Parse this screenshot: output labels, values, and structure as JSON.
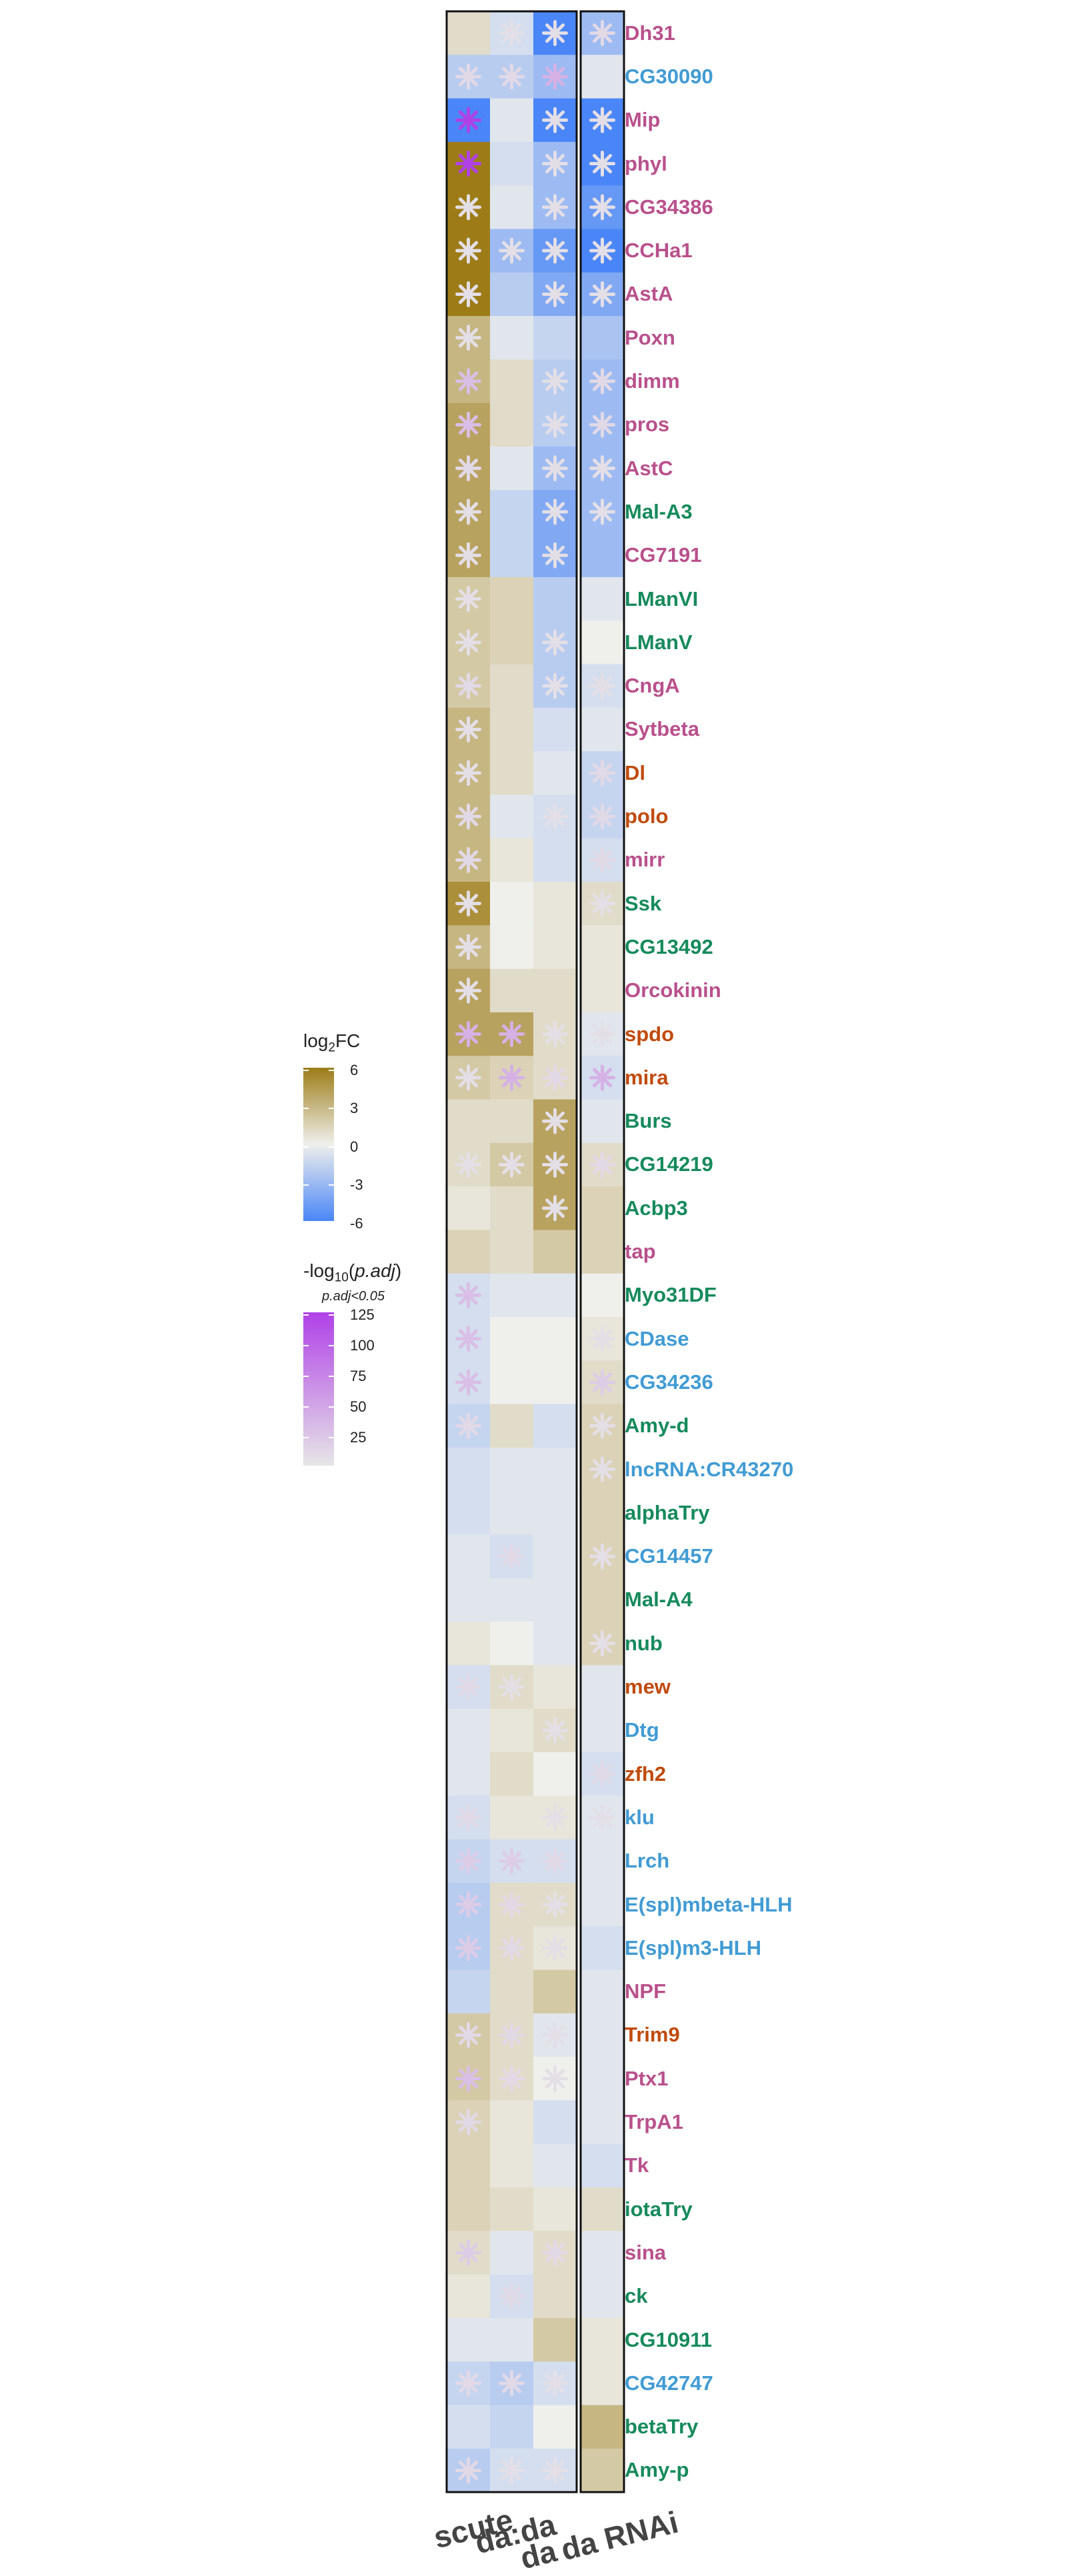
{
  "chart_data": {
    "type": "heatmap",
    "columns": [
      "scute",
      "da:da",
      "da",
      "da RNAi"
    ],
    "rows": [
      {
        "gene": "Dh31",
        "group": "pink",
        "log2fc": [
          1.0,
          -1.0,
          -6.0,
          -3.0
        ],
        "sig": [
          0,
          1,
          1,
          1
        ],
        "padj": [
          0,
          5,
          5,
          10
        ]
      },
      {
        "gene": "CG30090",
        "group": "blue",
        "log2fc": [
          -2.0,
          -2.0,
          -3.0,
          -0.5
        ],
        "sig": [
          1,
          1,
          1,
          0
        ],
        "padj": [
          10,
          10,
          40,
          0
        ]
      },
      {
        "gene": "Mip",
        "group": "pink",
        "log2fc": [
          -6.0,
          -0.5,
          -6.0,
          -6.0
        ],
        "sig": [
          1,
          0,
          1,
          1
        ],
        "padj": [
          125,
          0,
          5,
          5
        ]
      },
      {
        "gene": "phyl",
        "group": "pink",
        "log2fc": [
          6.0,
          -1.0,
          -3.0,
          -6.0
        ],
        "sig": [
          1,
          0,
          1,
          1
        ],
        "padj": [
          125,
          0,
          5,
          5
        ]
      },
      {
        "gene": "CG34386",
        "group": "pink",
        "log2fc": [
          6.0,
          -0.5,
          -3.0,
          -5.0
        ],
        "sig": [
          1,
          0,
          1,
          1
        ],
        "padj": [
          5,
          0,
          5,
          5
        ]
      },
      {
        "gene": "CCHa1",
        "group": "pink",
        "log2fc": [
          6.0,
          -3.0,
          -5.0,
          -6.0
        ],
        "sig": [
          1,
          1,
          1,
          1
        ],
        "padj": [
          5,
          5,
          5,
          5
        ]
      },
      {
        "gene": "AstA",
        "group": "pink",
        "log2fc": [
          6.0,
          -2.0,
          -4.0,
          -4.0
        ],
        "sig": [
          1,
          0,
          1,
          1
        ],
        "padj": [
          5,
          0,
          5,
          5
        ]
      },
      {
        "gene": "Poxn",
        "group": "pink",
        "log2fc": [
          3.0,
          -0.5,
          -1.5,
          -2.5
        ],
        "sig": [
          1,
          0,
          0,
          0
        ],
        "padj": [
          5,
          0,
          0,
          0
        ]
      },
      {
        "gene": "dimm",
        "group": "pink",
        "log2fc": [
          3.0,
          1.0,
          -2.0,
          -3.0
        ],
        "sig": [
          1,
          0,
          1,
          1
        ],
        "padj": [
          30,
          0,
          5,
          10
        ]
      },
      {
        "gene": "pros",
        "group": "pink",
        "log2fc": [
          4.0,
          1.0,
          -2.0,
          -3.0
        ],
        "sig": [
          1,
          0,
          1,
          1
        ],
        "padj": [
          30,
          0,
          5,
          10
        ]
      },
      {
        "gene": "AstC",
        "group": "pink",
        "log2fc": [
          4.0,
          -0.5,
          -3.0,
          -3.0
        ],
        "sig": [
          1,
          0,
          1,
          1
        ],
        "padj": [
          10,
          0,
          5,
          5
        ]
      },
      {
        "gene": "Mal-A3",
        "group": "green",
        "log2fc": [
          4.0,
          -1.5,
          -4.0,
          -3.0
        ],
        "sig": [
          1,
          0,
          1,
          1
        ],
        "padj": [
          5,
          0,
          5,
          5
        ]
      },
      {
        "gene": "CG7191",
        "group": "pink",
        "log2fc": [
          4.0,
          -1.5,
          -4.0,
          -3.0
        ],
        "sig": [
          1,
          0,
          1,
          0
        ],
        "padj": [
          5,
          0,
          5,
          0
        ]
      },
      {
        "gene": "LManVI",
        "group": "green",
        "log2fc": [
          2.0,
          1.5,
          -2.0,
          -0.5
        ],
        "sig": [
          1,
          0,
          0,
          0
        ],
        "padj": [
          5,
          0,
          0,
          0
        ]
      },
      {
        "gene": "LManV",
        "group": "green",
        "log2fc": [
          2.0,
          1.5,
          -2.0,
          0.0
        ],
        "sig": [
          1,
          0,
          1,
          0
        ],
        "padj": [
          5,
          0,
          5,
          0
        ]
      },
      {
        "gene": "CngA",
        "group": "pink",
        "log2fc": [
          2.0,
          1.0,
          -2.0,
          -1.0
        ],
        "sig": [
          1,
          0,
          1,
          1
        ],
        "padj": [
          10,
          0,
          5,
          5
        ]
      },
      {
        "gene": "Sytbeta",
        "group": "pink",
        "log2fc": [
          3.0,
          1.0,
          -1.0,
          -0.5
        ],
        "sig": [
          1,
          0,
          0,
          0
        ],
        "padj": [
          5,
          0,
          0,
          0
        ]
      },
      {
        "gene": "Dl",
        "group": "orange",
        "log2fc": [
          3.0,
          1.0,
          -0.5,
          -1.5
        ],
        "sig": [
          1,
          0,
          0,
          1
        ],
        "padj": [
          5,
          0,
          0,
          10
        ]
      },
      {
        "gene": "polo",
        "group": "orange",
        "log2fc": [
          3.0,
          -0.5,
          -1.0,
          -1.5
        ],
        "sig": [
          1,
          0,
          1,
          1
        ],
        "padj": [
          10,
          0,
          5,
          10
        ]
      },
      {
        "gene": "mirr",
        "group": "pink",
        "log2fc": [
          3.0,
          0.5,
          -1.0,
          -1.0
        ],
        "sig": [
          1,
          0,
          0,
          1
        ],
        "padj": [
          10,
          0,
          0,
          10
        ]
      },
      {
        "gene": "Ssk",
        "group": "green",
        "log2fc": [
          5.0,
          0.0,
          0.5,
          1.0
        ],
        "sig": [
          1,
          0,
          0,
          1
        ],
        "padj": [
          5,
          0,
          0,
          5
        ]
      },
      {
        "gene": "CG13492",
        "group": "green",
        "log2fc": [
          3.0,
          0.0,
          0.5,
          0.5
        ],
        "sig": [
          1,
          0,
          0,
          0
        ],
        "padj": [
          5,
          0,
          0,
          0
        ]
      },
      {
        "gene": "Orcokinin",
        "group": "pink",
        "log2fc": [
          4.0,
          1.0,
          1.0,
          0.5
        ],
        "sig": [
          1,
          0,
          0,
          0
        ],
        "padj": [
          5,
          0,
          0,
          0
        ]
      },
      {
        "gene": "spdo",
        "group": "orange",
        "log2fc": [
          4.0,
          4.0,
          1.0,
          -0.5
        ],
        "sig": [
          1,
          1,
          1,
          1
        ],
        "padj": [
          40,
          40,
          5,
          5
        ]
      },
      {
        "gene": "mira",
        "group": "orange",
        "log2fc": [
          2.0,
          1.5,
          1.0,
          -1.0
        ],
        "sig": [
          1,
          1,
          1,
          1
        ],
        "padj": [
          5,
          40,
          10,
          40
        ]
      },
      {
        "gene": "Burs",
        "group": "green",
        "log2fc": [
          1.0,
          1.0,
          4.0,
          -0.5
        ],
        "sig": [
          0,
          0,
          1,
          0
        ],
        "padj": [
          0,
          0,
          5,
          0
        ]
      },
      {
        "gene": "CG14219",
        "group": "green",
        "log2fc": [
          1.0,
          2.0,
          4.0,
          1.0
        ],
        "sig": [
          1,
          1,
          1,
          1
        ],
        "padj": [
          5,
          5,
          5,
          10
        ]
      },
      {
        "gene": "Acbp3",
        "group": "green",
        "log2fc": [
          0.5,
          1.0,
          4.0,
          1.5
        ],
        "sig": [
          0,
          0,
          1,
          0
        ],
        "padj": [
          0,
          0,
          5,
          0
        ]
      },
      {
        "gene": "tap",
        "group": "pink",
        "log2fc": [
          1.5,
          1.0,
          2.0,
          1.5
        ],
        "sig": [
          0,
          0,
          0,
          0
        ],
        "padj": [
          0,
          0,
          0,
          0
        ]
      },
      {
        "gene": "Myo31DF",
        "group": "green",
        "log2fc": [
          -1.0,
          -0.5,
          -0.5,
          0.0
        ],
        "sig": [
          1,
          0,
          0,
          0
        ],
        "padj": [
          30,
          0,
          0,
          0
        ]
      },
      {
        "gene": "CDase",
        "group": "blue",
        "log2fc": [
          -1.0,
          0.0,
          0.0,
          0.5
        ],
        "sig": [
          1,
          0,
          0,
          1
        ],
        "padj": [
          30,
          0,
          0,
          5
        ]
      },
      {
        "gene": "CG34236",
        "group": "blue",
        "log2fc": [
          -1.0,
          0.0,
          0.0,
          1.0
        ],
        "sig": [
          1,
          0,
          0,
          1
        ],
        "padj": [
          30,
          0,
          0,
          20
        ]
      },
      {
        "gene": "Amy-d",
        "group": "green",
        "log2fc": [
          -1.5,
          1.0,
          -1.0,
          1.5
        ],
        "sig": [
          1,
          0,
          0,
          1
        ],
        "padj": [
          10,
          0,
          0,
          5
        ]
      },
      {
        "gene": "lncRNA:CR43270",
        "group": "blue",
        "log2fc": [
          -1.0,
          -0.5,
          -0.5,
          1.5
        ],
        "sig": [
          0,
          0,
          0,
          1
        ],
        "padj": [
          0,
          0,
          0,
          5
        ]
      },
      {
        "gene": "alphaTry",
        "group": "green",
        "log2fc": [
          -1.0,
          -0.5,
          -0.5,
          1.5
        ],
        "sig": [
          0,
          0,
          0,
          0
        ],
        "padj": [
          0,
          0,
          0,
          0
        ]
      },
      {
        "gene": "CG14457",
        "group": "blue",
        "log2fc": [
          -0.5,
          -1.0,
          -0.5,
          1.5
        ],
        "sig": [
          0,
          1,
          0,
          1
        ],
        "padj": [
          0,
          10,
          0,
          5
        ]
      },
      {
        "gene": "Mal-A4",
        "group": "green",
        "log2fc": [
          -0.5,
          -0.5,
          -0.5,
          1.5
        ],
        "sig": [
          0,
          0,
          0,
          0
        ],
        "padj": [
          0,
          0,
          0,
          0
        ]
      },
      {
        "gene": "nub",
        "group": "green",
        "log2fc": [
          0.5,
          0.0,
          -0.5,
          1.5
        ],
        "sig": [
          0,
          0,
          0,
          1
        ],
        "padj": [
          0,
          0,
          0,
          5
        ]
      },
      {
        "gene": "mew",
        "group": "orange",
        "log2fc": [
          -1.0,
          1.0,
          0.5,
          -0.5
        ],
        "sig": [
          1,
          1,
          0,
          0
        ],
        "padj": [
          10,
          5,
          0,
          0
        ]
      },
      {
        "gene": "Dtg",
        "group": "blue",
        "log2fc": [
          -0.5,
          0.5,
          1.0,
          -0.5
        ],
        "sig": [
          0,
          0,
          1,
          0
        ],
        "padj": [
          0,
          0,
          5,
          0
        ]
      },
      {
        "gene": "zfh2",
        "group": "orange",
        "log2fc": [
          -0.5,
          1.0,
          0.0,
          -1.0
        ],
        "sig": [
          0,
          0,
          0,
          1
        ],
        "padj": [
          0,
          0,
          0,
          10
        ]
      },
      {
        "gene": "klu",
        "group": "blue",
        "log2fc": [
          -1.0,
          0.5,
          0.5,
          -0.5
        ],
        "sig": [
          1,
          0,
          1,
          1
        ],
        "padj": [
          10,
          0,
          5,
          5
        ]
      },
      {
        "gene": "Lrch",
        "group": "blue",
        "log2fc": [
          -1.5,
          -1.0,
          -1.0,
          -0.5
        ],
        "sig": [
          1,
          1,
          1,
          0
        ],
        "padj": [
          20,
          20,
          10,
          0
        ]
      },
      {
        "gene": "E(spl)mbeta-HLH",
        "group": "blue",
        "log2fc": [
          -2.0,
          1.0,
          1.0,
          -0.5
        ],
        "sig": [
          1,
          1,
          1,
          0
        ],
        "padj": [
          20,
          10,
          5,
          0
        ]
      },
      {
        "gene": "E(spl)m3-HLH",
        "group": "blue",
        "log2fc": [
          -2.0,
          1.0,
          0.5,
          -1.0
        ],
        "sig": [
          1,
          1,
          1,
          0
        ],
        "padj": [
          20,
          10,
          5,
          0
        ]
      },
      {
        "gene": "NPF",
        "group": "pink",
        "log2fc": [
          -1.5,
          1.0,
          2.0,
          -0.5
        ],
        "sig": [
          0,
          0,
          0,
          0
        ],
        "padj": [
          0,
          0,
          0,
          0
        ]
      },
      {
        "gene": "Trim9",
        "group": "orange",
        "log2fc": [
          2.0,
          1.0,
          -0.5,
          -0.5
        ],
        "sig": [
          1,
          1,
          1,
          0
        ],
        "padj": [
          10,
          10,
          5,
          0
        ]
      },
      {
        "gene": "Ptx1",
        "group": "pink",
        "log2fc": [
          2.0,
          1.0,
          0.0,
          -0.5
        ],
        "sig": [
          1,
          1,
          1,
          0
        ],
        "padj": [
          30,
          10,
          5,
          0
        ]
      },
      {
        "gene": "TrpA1",
        "group": "pink",
        "log2fc": [
          1.5,
          0.5,
          -1.0,
          -0.5
        ],
        "sig": [
          1,
          0,
          0,
          0
        ],
        "padj": [
          10,
          0,
          0,
          0
        ]
      },
      {
        "gene": "Tk",
        "group": "pink",
        "log2fc": [
          1.5,
          0.5,
          -0.5,
          -1.0
        ],
        "sig": [
          0,
          0,
          0,
          0
        ],
        "padj": [
          0,
          0,
          0,
          0
        ]
      },
      {
        "gene": "iotaTry",
        "group": "green",
        "log2fc": [
          1.5,
          1.0,
          0.5,
          1.0
        ],
        "sig": [
          0,
          0,
          0,
          0
        ],
        "padj": [
          0,
          0,
          0,
          0
        ]
      },
      {
        "gene": "sina",
        "group": "pink",
        "log2fc": [
          1.0,
          -0.5,
          1.0,
          -0.5
        ],
        "sig": [
          1,
          0,
          1,
          0
        ],
        "padj": [
          20,
          0,
          10,
          0
        ]
      },
      {
        "gene": "ck",
        "group": "green",
        "log2fc": [
          0.5,
          -1.0,
          1.0,
          -0.5
        ],
        "sig": [
          0,
          1,
          0,
          0
        ],
        "padj": [
          0,
          10,
          0,
          0
        ]
      },
      {
        "gene": "CG10911",
        "group": "green",
        "log2fc": [
          -0.5,
          -0.5,
          2.0,
          0.5
        ],
        "sig": [
          0,
          0,
          0,
          0
        ],
        "padj": [
          0,
          0,
          0,
          0
        ]
      },
      {
        "gene": "CG42747",
        "group": "blue",
        "log2fc": [
          -1.5,
          -2.0,
          -1.0,
          0.5
        ],
        "sig": [
          1,
          1,
          1,
          0
        ],
        "padj": [
          10,
          10,
          5,
          0
        ]
      },
      {
        "gene": "betaTry",
        "group": "green",
        "log2fc": [
          -1.0,
          -1.5,
          0.0,
          3.0
        ],
        "sig": [
          0,
          0,
          0,
          0
        ],
        "padj": [
          0,
          0,
          0,
          0
        ]
      },
      {
        "gene": "Amy-p",
        "group": "green",
        "log2fc": [
          -2.0,
          -1.0,
          -1.0,
          2.0
        ],
        "sig": [
          1,
          1,
          1,
          0
        ],
        "padj": [
          10,
          5,
          5,
          0
        ]
      }
    ],
    "group_colors": {
      "pink": "#b9508c",
      "blue": "#419bd4",
      "green": "#168a5c",
      "orange": "#c14a0c"
    },
    "fc_colors": {
      "neg": "#4a86f7",
      "mid": "#efefec",
      "pos": "#9d7c18"
    },
    "sig_colors": {
      "low": "#e6e6e6",
      "high": "#b041e7"
    },
    "fc_legend": {
      "title_main": "log",
      "title_sub": "2",
      "title_tail": "FC",
      "range": [
        -6,
        6
      ],
      "ticks": [
        "6",
        "3",
        "0",
        "-3",
        "-6"
      ]
    },
    "padj_legend": {
      "title_pre": "-log",
      "title_sub": "10",
      "title_open": "(",
      "title_italic": "p.adj",
      "title_close": ")",
      "subtitle": "p.adj<0.05",
      "range": [
        0,
        125
      ],
      "ticks": [
        "125",
        "100",
        "75",
        "50",
        "25"
      ]
    },
    "column_labels": [
      "scute",
      "da:da",
      "da",
      "da RNAi"
    ]
  }
}
